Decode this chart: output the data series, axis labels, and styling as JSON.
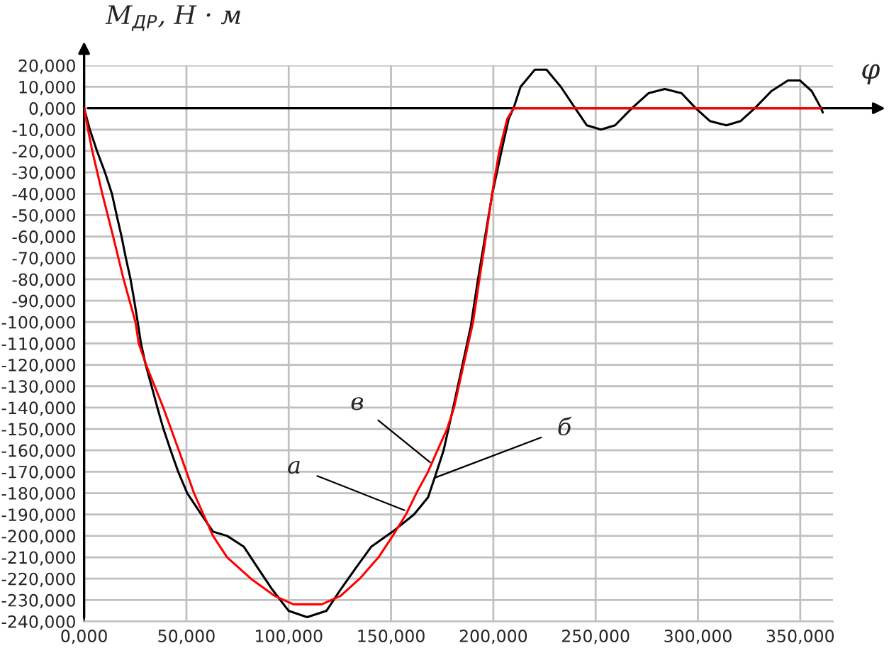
{
  "chart_data": {
    "type": "line",
    "xlabel": "φ",
    "ylabel": "M$_{ДР}$, Н · м",
    "xlim": [
      0,
      366
    ],
    "ylim": [
      -240,
      20
    ],
    "xticks": [
      {
        "value": 0,
        "label": "0,000"
      },
      {
        "value": 50,
        "label": "50,000"
      },
      {
        "value": 100,
        "label": "100,000"
      },
      {
        "value": 150,
        "label": "150,000"
      },
      {
        "value": 200,
        "label": "200,000"
      },
      {
        "value": 250,
        "label": "250,000"
      },
      {
        "value": 300,
        "label": "300,000"
      },
      {
        "value": 350,
        "label": "350,000"
      }
    ],
    "yticks": [
      {
        "value": 20,
        "label": "20,000"
      },
      {
        "value": 10,
        "label": "10,000"
      },
      {
        "value": 0,
        "label": "0,000"
      },
      {
        "value": -10,
        "label": "-10,000"
      },
      {
        "value": -20,
        "label": "-20,000"
      },
      {
        "value": -30,
        "label": "-30,000"
      },
      {
        "value": -40,
        "label": "-40,000"
      },
      {
        "value": -50,
        "label": "-50,000"
      },
      {
        "value": -60,
        "label": "-60,000"
      },
      {
        "value": -70,
        "label": "-70,000"
      },
      {
        "value": -80,
        "label": "-80,000"
      },
      {
        "value": -90,
        "label": "-90,000"
      },
      {
        "value": -100,
        "label": "-100,000"
      },
      {
        "value": -110,
        "label": "-110,000"
      },
      {
        "value": -120,
        "label": "-120,000"
      },
      {
        "value": -130,
        "label": "-130,000"
      },
      {
        "value": -140,
        "label": "-140,000"
      },
      {
        "value": -150,
        "label": "-150,000"
      },
      {
        "value": -160,
        "label": "-160,000"
      },
      {
        "value": -170,
        "label": "-170,000"
      },
      {
        "value": -180,
        "label": "-180,000"
      },
      {
        "value": -190,
        "label": "-190,000"
      },
      {
        "value": -200,
        "label": "-200,000"
      },
      {
        "value": -210,
        "label": "-210,000"
      },
      {
        "value": -220,
        "label": "-220,000"
      },
      {
        "value": -230,
        "label": "-230,000"
      },
      {
        "value": -240,
        "label": "-240,000"
      }
    ],
    "grid": true,
    "legend": false,
    "marker": "none",
    "line_style": "solid",
    "series": [
      {
        "color": "#000000",
        "x": [
          0,
          2.8,
          6.3,
          10.2,
          13.6,
          15.9,
          18.3,
          20.4,
          22.7,
          24.5,
          26.2,
          27.8,
          30.1,
          33.0,
          35.8,
          38.8,
          42.3,
          46.0,
          50.4,
          57.3,
          63,
          69.9,
          78,
          84.9,
          91.9,
          99.9,
          109,
          118.5,
          125.4,
          132.8,
          140.4,
          150.8,
          161.2,
          168.1,
          171.6,
          175.7,
          180.4,
          189,
          192.5,
          196,
          199.5,
          204,
          207.5,
          209.9,
          213.3,
          220.3,
          226,
          233,
          240,
          245.7,
          252.6,
          259.5,
          267.7,
          275.8,
          283.8,
          292,
          298.9,
          305.8,
          313.9,
          320.9,
          327.8,
          335.9,
          344,
          349.8,
          355.6,
          360.2,
          361
        ],
        "values": [
          0,
          -10,
          -20,
          -30,
          -40,
          -50,
          -60,
          -70,
          -80,
          -90,
          -100,
          -110,
          -120,
          -130,
          -140,
          -150,
          -160,
          -170,
          -180,
          -190,
          -198,
          -200,
          -205,
          -215,
          -225,
          -235,
          -238,
          -235,
          -225,
          -215,
          -205,
          -198,
          -190,
          -182,
          -172,
          -160,
          -140,
          -102,
          -80,
          -60,
          -40,
          -20,
          -5,
          0,
          10,
          18,
          18,
          10,
          0,
          -8,
          -10,
          -8,
          0,
          7,
          9,
          7,
          0,
          -6,
          -8,
          -6,
          0,
          8,
          13,
          13,
          8,
          0,
          -2
        ]
      },
      {
        "color": "#ff0000",
        "x": [
          0,
          1.9,
          4.0,
          8.9,
          14.2,
          19.3,
          25.1,
          26.7,
          30.3,
          38.7,
          46.3,
          53.7,
          63,
          69.9,
          81.5,
          93,
          102.3,
          116.2,
          125.4,
          134.7,
          143.9,
          150.8,
          157.3,
          162.4,
          168.1,
          172.7,
          177.4,
          180.8,
          190.1,
          193.2,
          196.4,
          199.4,
          202.9,
          206.8,
          209.9,
          360.2
        ],
        "values": [
          0,
          -10,
          -20,
          -40,
          -60,
          -80,
          -100,
          -110,
          -120,
          -140,
          -160,
          -180,
          -200,
          -210,
          -220,
          -228,
          -232,
          -232,
          -228,
          -220,
          -210,
          -200,
          -190,
          -180,
          -170,
          -160,
          -150,
          -140,
          -100,
          -80,
          -60,
          -40,
          -20,
          -5,
          0,
          0
        ]
      }
    ],
    "annotations": [
      {
        "text": "а",
        "x": 156.6,
        "y": -188
      },
      {
        "text": "в",
        "x": 169.1,
        "y": -165.6
      },
      {
        "text": "б",
        "x": 171.2,
        "y": -172.9
      }
    ]
  }
}
